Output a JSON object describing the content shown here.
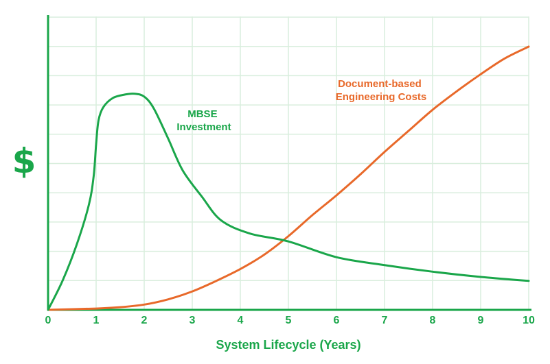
{
  "chart_data": {
    "type": "line",
    "xlabel": "System Lifecycle (Years)",
    "ylabel": "$",
    "xlim": [
      0,
      10
    ],
    "ylim": [
      0,
      100
    ],
    "x_ticks": [
      "0",
      "1",
      "2",
      "3",
      "4",
      "5",
      "6",
      "7",
      "8",
      "9",
      "10"
    ],
    "grid": true,
    "colors": {
      "axis": "#1aa64a",
      "grid": "#d9eedd",
      "mbse": "#1aa64a",
      "doc": "#e8692a"
    },
    "series": [
      {
        "name_lines": [
          "MBSE",
          "Investment"
        ],
        "x": [
          0,
          0.3,
          0.6,
          0.85,
          0.95,
          1.0,
          1.05,
          1.15,
          1.35,
          1.6,
          1.8,
          2.0,
          2.2,
          2.5,
          2.8,
          3.2,
          3.6,
          4.2,
          5.0,
          6.0,
          7.0,
          8.0,
          9.0,
          10.0
        ],
        "y": [
          0,
          11,
          25,
          40,
          51,
          63,
          72,
          77,
          80.5,
          81.8,
          82.1,
          81,
          76.5,
          65,
          53,
          43,
          34,
          29,
          26,
          20,
          17,
          14.5,
          12.5,
          11
        ]
      },
      {
        "name_lines": [
          "Document-based",
          "Engineering Costs"
        ],
        "x": [
          0,
          1,
          1.5,
          2,
          2.5,
          3,
          3.5,
          4,
          4.5,
          5,
          5.5,
          6,
          6.5,
          7,
          7.5,
          8,
          8.5,
          9,
          9.5,
          10
        ],
        "y": [
          0,
          0.5,
          1,
          2,
          4,
          7,
          11,
          15.5,
          21,
          28,
          36,
          43.5,
          51.5,
          60,
          68,
          76,
          83,
          89.5,
          95.5,
          100
        ]
      }
    ]
  }
}
